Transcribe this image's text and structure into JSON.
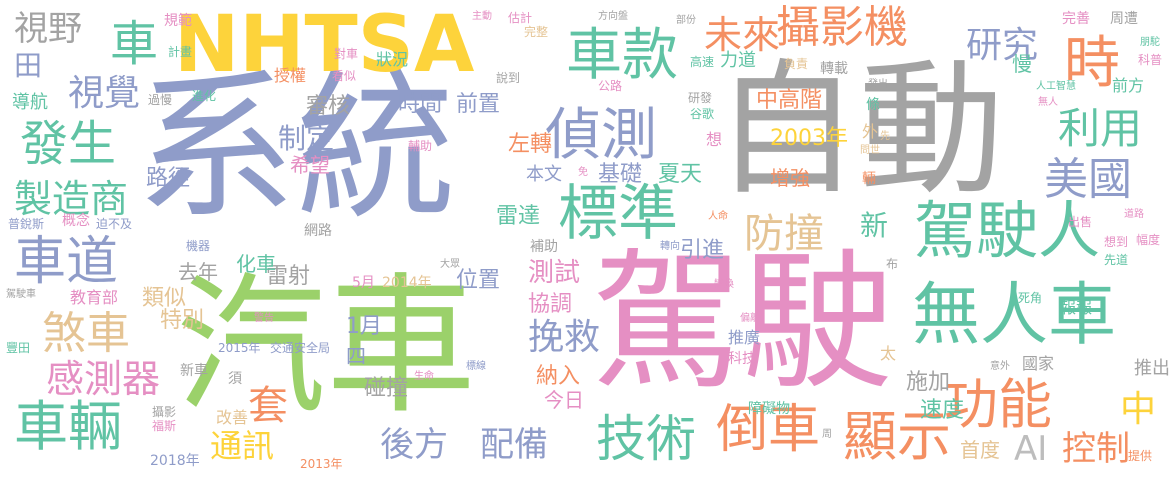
{
  "palette": {
    "purple": "#8f9cc9",
    "gray": "#a3a3a3",
    "green": "#9bd16a",
    "pink": "#e58fc3",
    "yellow": "#fdd33b",
    "teal": "#60c3a4",
    "orange": "#f48f62",
    "tan": "#e5c494",
    "lightgray": "#bdbdbd"
  },
  "words": [
    {
      "id": "xitong",
      "text": "系統"
    },
    {
      "id": "zidong",
      "text": "自動"
    },
    {
      "id": "jiashi",
      "text": "駕駛"
    },
    {
      "id": "qiche",
      "text": "汽車"
    },
    {
      "id": "nhtsa",
      "text": "NHTSA"
    },
    {
      "id": "wurenche",
      "text": "無人車"
    },
    {
      "id": "jiashiren",
      "text": "駕駛人"
    },
    {
      "id": "biaozhun",
      "text": "標準"
    },
    {
      "id": "zhence",
      "text": "偵測"
    },
    {
      "id": "chekuan",
      "text": "車款"
    },
    {
      "id": "sheyingji",
      "text": "攝影機"
    },
    {
      "id": "gongneng",
      "text": "功能"
    },
    {
      "id": "xianshi",
      "text": "顯示"
    },
    {
      "id": "daoche",
      "text": "倒車"
    },
    {
      "id": "jishu",
      "text": "技術"
    },
    {
      "id": "cheliang",
      "text": "車輛"
    },
    {
      "id": "chedao",
      "text": "車道"
    },
    {
      "id": "fasheng",
      "text": "發生"
    },
    {
      "id": "zhizaoshang",
      "text": "製造商"
    },
    {
      "id": "chache",
      "text": "煞車"
    },
    {
      "id": "ganceqi",
      "text": "感測器"
    },
    {
      "id": "weilai",
      "text": "未來"
    },
    {
      "id": "yanjiu",
      "text": "研究"
    },
    {
      "id": "shi",
      "text": "時"
    },
    {
      "id": "liyong",
      "text": "利用"
    },
    {
      "id": "meiguo",
      "text": "美國"
    },
    {
      "id": "fangzhuang",
      "text": "防撞"
    },
    {
      "id": "zhong",
      "text": "中"
    },
    {
      "id": "ai",
      "text": "AI"
    },
    {
      "id": "kongzhi",
      "text": "控制"
    },
    {
      "id": "houfang",
      "text": "後方"
    },
    {
      "id": "peibei",
      "text": "配備"
    },
    {
      "id": "tongxun",
      "text": "通訊"
    },
    {
      "id": "tao",
      "text": "套"
    },
    {
      "id": "wanjiu",
      "text": "挽救"
    },
    {
      "id": "che",
      "text": "車"
    },
    {
      "id": "shiye",
      "text": "視野"
    },
    {
      "id": "tian",
      "text": "田"
    },
    {
      "id": "shijue",
      "text": "視覺"
    },
    {
      "id": "zhiding",
      "text": "制定"
    },
    {
      "id": "shenhe",
      "text": "審核"
    },
    {
      "id": "shijian",
      "text": "時間"
    },
    {
      "id": "qianzhi",
      "text": "前置"
    },
    {
      "id": "zhonggaojie",
      "text": "中高階"
    },
    {
      "id": "y2003",
      "text": "2003年"
    },
    {
      "id": "zengqiang",
      "text": "增強"
    },
    {
      "id": "xiwang",
      "text": "希望"
    },
    {
      "id": "zuozhuan",
      "text": "左轉"
    },
    {
      "id": "jichu",
      "text": "基礎"
    },
    {
      "id": "xiatian",
      "text": "夏天"
    },
    {
      "id": "benwen",
      "text": "本文"
    },
    {
      "id": "luijing",
      "text": "路徑"
    },
    {
      "id": "leida",
      "text": "雷達"
    },
    {
      "id": "xin",
      "text": "新"
    },
    {
      "id": "yinjin",
      "text": "引進"
    },
    {
      "id": "ceshi",
      "text": "測試"
    },
    {
      "id": "xietiao",
      "text": "協調"
    },
    {
      "id": "leishe",
      "text": "雷射"
    },
    {
      "id": "y2014",
      "text": "2014年"
    },
    {
      "id": "m5",
      "text": "5月"
    },
    {
      "id": "weizhi",
      "text": "位置"
    },
    {
      "id": "huache",
      "text": "化車"
    },
    {
      "id": "qunian",
      "text": "去年"
    },
    {
      "id": "leisi",
      "text": "類似"
    },
    {
      "id": "tebie",
      "text": "特別"
    },
    {
      "id": "jiaoyubu",
      "text": "教育部"
    },
    {
      "id": "m1",
      "text": "1月"
    },
    {
      "id": "si",
      "text": "四"
    },
    {
      "id": "pengzhuang",
      "text": "碰撞"
    },
    {
      "id": "narui",
      "text": "納入"
    },
    {
      "id": "jinri",
      "text": "今日"
    },
    {
      "id": "shijia",
      "text": "施加"
    },
    {
      "id": "sudu",
      "text": "速度"
    },
    {
      "id": "shoudu",
      "text": "首度"
    },
    {
      "id": "tuichu",
      "text": "推出"
    },
    {
      "id": "guojia",
      "text": "國家"
    },
    {
      "id": "tuiguang",
      "text": "推廣"
    },
    {
      "id": "keji",
      "text": "科技"
    },
    {
      "id": "zhangaiwu",
      "text": "障礙物"
    },
    {
      "id": "y2018",
      "text": "2018年"
    },
    {
      "id": "y2013",
      "text": "2013年"
    },
    {
      "id": "gaishan",
      "text": "改善"
    },
    {
      "id": "fusi",
      "text": "福斯"
    },
    {
      "id": "sheying",
      "text": "攝影"
    },
    {
      "id": "xinche",
      "text": "新車"
    },
    {
      "id": "xu",
      "text": "須"
    },
    {
      "id": "y2015",
      "text": "2015年"
    },
    {
      "id": "jiaotong",
      "text": "交通安全局"
    },
    {
      "id": "jinggao",
      "text": "警告"
    },
    {
      "id": "fengtian",
      "text": "豐田"
    },
    {
      "id": "jiashiche",
      "text": "駕駛車"
    },
    {
      "id": "jiqi",
      "text": "機器"
    },
    {
      "id": "gainian",
      "text": "概念"
    },
    {
      "id": "purui",
      "text": "普銳斯"
    },
    {
      "id": "pobuji",
      "text": "迫不及"
    },
    {
      "id": "wanglu",
      "text": "網路"
    },
    {
      "id": "daohang",
      "text": "導航"
    },
    {
      "id": "guoman",
      "text": "過慢"
    },
    {
      "id": "jinhua",
      "text": "進化"
    },
    {
      "id": "fuzhu",
      "text": "輔助"
    },
    {
      "id": "gonglu",
      "text": "公路"
    },
    {
      "id": "yanfa",
      "text": "研發"
    },
    {
      "id": "guge",
      "text": "谷歌"
    },
    {
      "id": "xiang",
      "text": "想"
    },
    {
      "id": "mian",
      "text": "免"
    },
    {
      "id": "buzhu",
      "text": "補助"
    },
    {
      "id": "zhuanxiang",
      "text": "轉向"
    },
    {
      "id": "renming",
      "text": "人命"
    },
    {
      "id": "dazhong",
      "text": "大眾"
    },
    {
      "id": "bu",
      "text": "布"
    },
    {
      "id": "bianhuan",
      "text": "變換"
    },
    {
      "id": "pianli",
      "text": "偏離"
    },
    {
      "id": "biaoxian",
      "text": "標線"
    },
    {
      "id": "shengming",
      "text": "生命"
    },
    {
      "id": "tai",
      "text": "太"
    },
    {
      "id": "yiwai",
      "text": "意外"
    },
    {
      "id": "sijiao",
      "text": "死角"
    },
    {
      "id": "baobao",
      "text": "報報"
    },
    {
      "id": "chushou",
      "text": "出售"
    },
    {
      "id": "xiangdao",
      "text": "想到"
    },
    {
      "id": "xiandao",
      "text": "先道"
    },
    {
      "id": "daolu",
      "text": "道路"
    },
    {
      "id": "fudu",
      "text": "幅度"
    },
    {
      "id": "tigong",
      "text": "提供"
    },
    {
      "id": "guifan",
      "text": "規範"
    },
    {
      "id": "zhudong",
      "text": "主動"
    },
    {
      "id": "guji",
      "text": "估計"
    },
    {
      "id": "fangxiangpan",
      "text": "方向盤"
    },
    {
      "id": "bufen",
      "text": "部份"
    },
    {
      "id": "wanshan",
      "text": "完善"
    },
    {
      "id": "zhoudao",
      "text": "周遭"
    },
    {
      "id": "jihua",
      "text": "計畫"
    },
    {
      "id": "duiche",
      "text": "對車"
    },
    {
      "id": "wanzheng",
      "text": "完整"
    },
    {
      "id": "shoquan",
      "text": "授權"
    },
    {
      "id": "kansi",
      "text": "看似"
    },
    {
      "id": "zhuangkuang",
      "text": "狀況"
    },
    {
      "id": "shuodao",
      "text": "說到"
    },
    {
      "id": "gaosu",
      "text": "高速"
    },
    {
      "id": "lidao",
      "text": "力道"
    },
    {
      "id": "fuze",
      "text": "負責"
    },
    {
      "id": "zhuanzai",
      "text": "轉載"
    },
    {
      "id": "man",
      "text": "慢"
    },
    {
      "id": "pengzhi",
      "text": "朋駝"
    },
    {
      "id": "kepu",
      "text": "科普"
    },
    {
      "id": "qianfang",
      "text": "前方"
    },
    {
      "id": "rengongzhihui",
      "text": "人工智慧"
    },
    {
      "id": "wuren",
      "text": "無人"
    },
    {
      "id": "fachu",
      "text": "發出"
    },
    {
      "id": "tiao",
      "text": "條"
    },
    {
      "id": "wai",
      "text": "外"
    },
    {
      "id": "wenshi",
      "text": "問世"
    },
    {
      "id": "xian",
      "text": "先"
    },
    {
      "id": "liang",
      "text": "輛"
    },
    {
      "id": "zhou",
      "text": "周"
    }
  ]
}
